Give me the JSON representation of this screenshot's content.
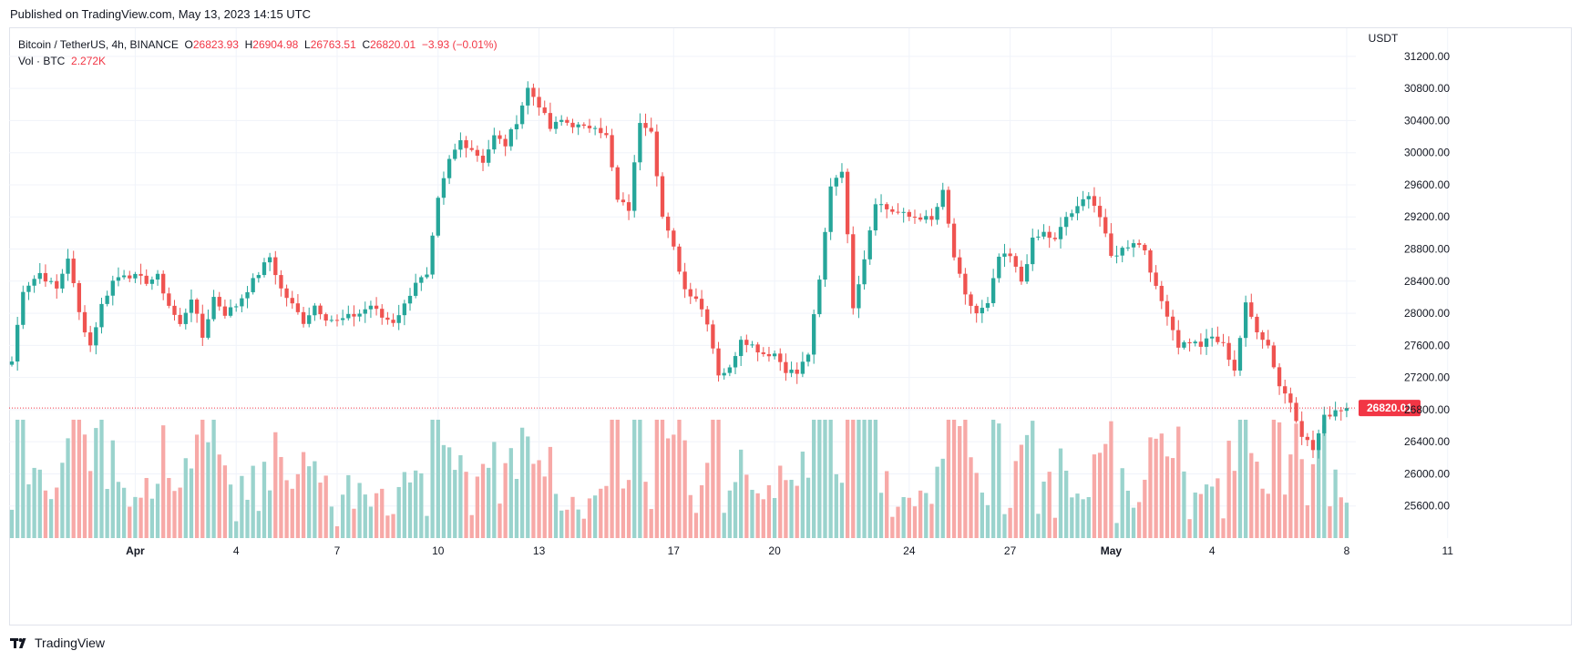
{
  "header": {
    "published": "Published on TradingView.com, May 13, 2023 14:15 UTC"
  },
  "legend": {
    "symbol": "Bitcoin / TetherUS, 4h, BINANCE",
    "open_label": "O",
    "open": "26823.93",
    "high_label": "H",
    "high": "26904.98",
    "low_label": "L",
    "low": "26763.51",
    "close_label": "C",
    "close": "26820.01",
    "change": "−3.93 (−0.01%)",
    "vol_label": "Vol · BTC",
    "vol_value": "2.272K"
  },
  "footer": {
    "brand": "TradingView"
  },
  "colors": {
    "up": "#26a69a",
    "down": "#ef5350",
    "up_vol": "#9ad3cd",
    "down_vol": "#f7a9a7",
    "last_price": "#f23645",
    "grid": "#f0f3fa"
  },
  "chart_data": {
    "type": "candlestick",
    "timeframe": "4h",
    "currency": "USDT",
    "last_price": "26820.01",
    "ylim": [
      25200,
      31550
    ],
    "y_ticks": [
      "31200.00",
      "30800.00",
      "30400.00",
      "30000.00",
      "29600.00",
      "29200.00",
      "28800.00",
      "28400.00",
      "28000.00",
      "27600.00",
      "27200.00",
      "26800.00",
      "26400.00",
      "26000.00",
      "25600.00"
    ],
    "x_tick_labels": [
      {
        "label": "Apr",
        "candle_index": 22,
        "bold": true
      },
      {
        "label": "4",
        "candle_index": 40
      },
      {
        "label": "7",
        "candle_index": 58
      },
      {
        "label": "10",
        "candle_index": 76
      },
      {
        "label": "13",
        "candle_index": 94
      },
      {
        "label": "17",
        "candle_index": 118
      },
      {
        "label": "20",
        "candle_index": 136
      },
      {
        "label": "24",
        "candle_index": 160
      },
      {
        "label": "27",
        "candle_index": 178
      },
      {
        "label": "May",
        "candle_index": 196,
        "bold": true
      },
      {
        "label": "4",
        "candle_index": 214
      },
      {
        "label": "8",
        "candle_index": 238
      },
      {
        "label": "11",
        "candle_index": 256
      }
    ],
    "close_anchors": [
      [
        0,
        27400
      ],
      [
        2,
        28300
      ],
      [
        5,
        28500
      ],
      [
        8,
        28300
      ],
      [
        10,
        28700
      ],
      [
        12,
        28000
      ],
      [
        14,
        27600
      ],
      [
        16,
        28100
      ],
      [
        18,
        28400
      ],
      [
        20,
        28500
      ],
      [
        22,
        28450
      ],
      [
        24,
        28400
      ],
      [
        26,
        28450
      ],
      [
        28,
        28100
      ],
      [
        30,
        27850
      ],
      [
        32,
        28200
      ],
      [
        34,
        27700
      ],
      [
        36,
        28200
      ],
      [
        38,
        28000
      ],
      [
        40,
        28100
      ],
      [
        42,
        28300
      ],
      [
        44,
        28500
      ],
      [
        46,
        28700
      ],
      [
        48,
        28300
      ],
      [
        50,
        28100
      ],
      [
        52,
        27900
      ],
      [
        54,
        28100
      ],
      [
        56,
        27950
      ],
      [
        58,
        27900
      ],
      [
        60,
        27950
      ],
      [
        62,
        28000
      ],
      [
        64,
        28100
      ],
      [
        66,
        27950
      ],
      [
        68,
        27900
      ],
      [
        70,
        28100
      ],
      [
        72,
        28400
      ],
      [
        74,
        28450
      ],
      [
        76,
        29400
      ],
      [
        78,
        29900
      ],
      [
        80,
        30150
      ],
      [
        82,
        30050
      ],
      [
        84,
        29900
      ],
      [
        86,
        30200
      ],
      [
        88,
        30100
      ],
      [
        90,
        30400
      ],
      [
        92,
        30800
      ],
      [
        94,
        30600
      ],
      [
        96,
        30300
      ],
      [
        98,
        30400
      ],
      [
        100,
        30350
      ],
      [
        102,
        30300
      ],
      [
        104,
        30350
      ],
      [
        106,
        30200
      ],
      [
        108,
        29400
      ],
      [
        110,
        29300
      ],
      [
        112,
        30400
      ],
      [
        114,
        30300
      ],
      [
        116,
        29200
      ],
      [
        118,
        28800
      ],
      [
        120,
        28300
      ],
      [
        122,
        28200
      ],
      [
        124,
        27900
      ],
      [
        126,
        27250
      ],
      [
        128,
        27300
      ],
      [
        130,
        27700
      ],
      [
        132,
        27600
      ],
      [
        134,
        27500
      ],
      [
        136,
        27500
      ],
      [
        138,
        27300
      ],
      [
        140,
        27250
      ],
      [
        142,
        27500
      ],
      [
        144,
        28400
      ],
      [
        146,
        29600
      ],
      [
        148,
        29800
      ],
      [
        150,
        28100
      ],
      [
        152,
        28700
      ],
      [
        154,
        29400
      ],
      [
        156,
        29300
      ],
      [
        158,
        29250
      ],
      [
        160,
        29200
      ],
      [
        162,
        29200
      ],
      [
        164,
        29150
      ],
      [
        166,
        29500
      ],
      [
        168,
        28700
      ],
      [
        170,
        28200
      ],
      [
        172,
        28000
      ],
      [
        174,
        28100
      ],
      [
        176,
        28700
      ],
      [
        178,
        28700
      ],
      [
        180,
        28400
      ],
      [
        182,
        28900
      ],
      [
        184,
        29000
      ],
      [
        186,
        28900
      ],
      [
        188,
        29200
      ],
      [
        190,
        29300
      ],
      [
        192,
        29500
      ],
      [
        194,
        29200
      ],
      [
        196,
        28700
      ],
      [
        198,
        28800
      ],
      [
        200,
        28900
      ],
      [
        202,
        28800
      ],
      [
        204,
        28300
      ],
      [
        206,
        28000
      ],
      [
        208,
        27600
      ],
      [
        210,
        27650
      ],
      [
        212,
        27600
      ],
      [
        214,
        27700
      ],
      [
        216,
        27600
      ],
      [
        218,
        27300
      ],
      [
        220,
        28100
      ],
      [
        222,
        27800
      ],
      [
        224,
        27600
      ],
      [
        226,
        27100
      ],
      [
        228,
        26900
      ],
      [
        230,
        26500
      ],
      [
        232,
        26300
      ],
      [
        234,
        26700
      ],
      [
        236,
        26800
      ],
      [
        238,
        26820
      ]
    ],
    "candle_count": 239,
    "volume_note": "Volume bars shown below price, colored by candle direction; latest volume 2.272K BTC"
  }
}
